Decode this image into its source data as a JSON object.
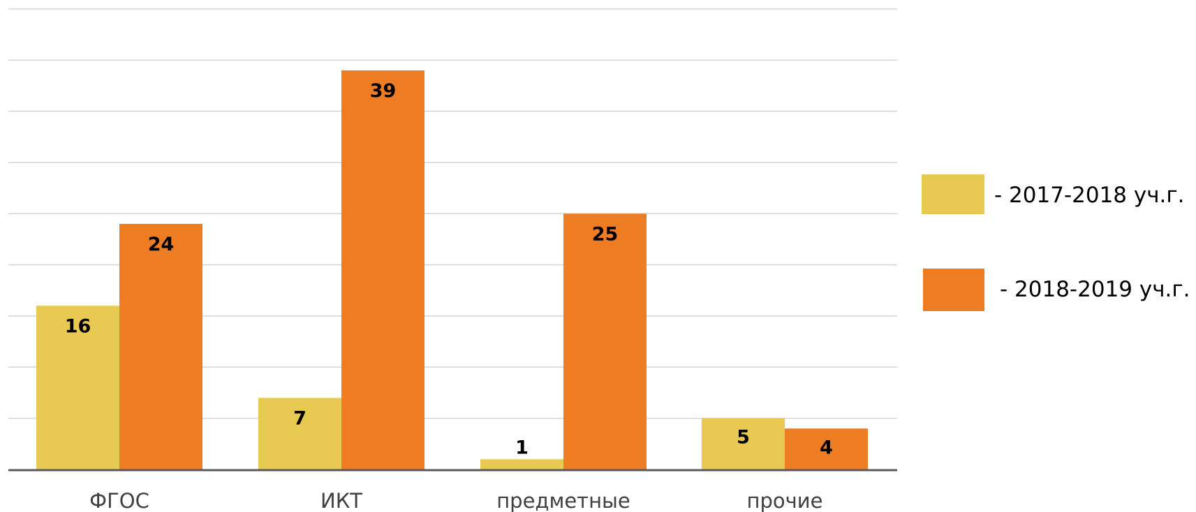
{
  "chart_data": {
    "type": "bar",
    "categories": [
      "ФГОС",
      "ИКТ",
      "предметные",
      "прочие"
    ],
    "series": [
      {
        "name": "- 2017-2018 уч.г.",
        "values": [
          16,
          7,
          1,
          5
        ],
        "color": "#E8C952"
      },
      {
        "name": "- 2018-2019 уч.г.",
        "values": [
          24,
          39,
          25,
          4
        ],
        "color": "#EE7C23"
      }
    ],
    "ylim": [
      0,
      45
    ],
    "ytick_step": 5,
    "grid": true,
    "legend": "right",
    "title": "",
    "xlabel": "",
    "ylabel": ""
  }
}
